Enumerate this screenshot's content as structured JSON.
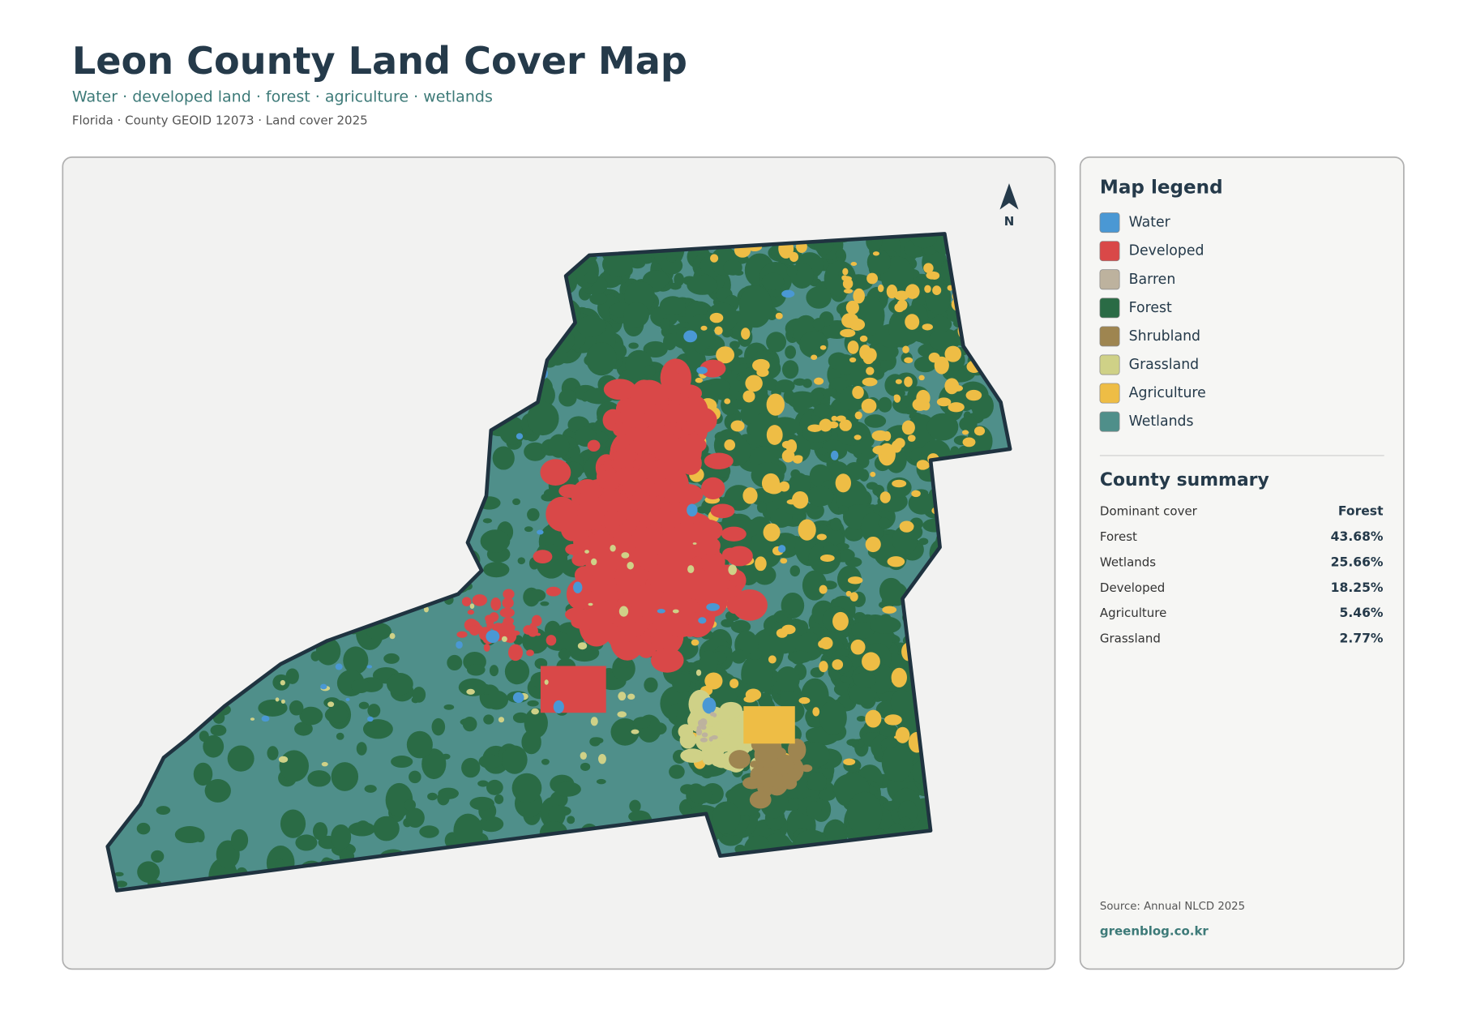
{
  "header": {
    "title": "Leon County Land Cover Map",
    "subtitle": "Water · developed land · forest · agriculture · wetlands",
    "meta": "Florida · County GEOID 12073 · Land cover 2025"
  },
  "map": {
    "north_label": "N"
  },
  "legend": {
    "title": "Map legend",
    "items": [
      {
        "label": "Water",
        "color": "#4a98d4"
      },
      {
        "label": "Developed",
        "color": "#d94848"
      },
      {
        "label": "Barren",
        "color": "#bdb29e"
      },
      {
        "label": "Forest",
        "color": "#2a6b45"
      },
      {
        "label": "Shrubland",
        "color": "#9e8550"
      },
      {
        "label": "Grassland",
        "color": "#cfd187"
      },
      {
        "label": "Agriculture",
        "color": "#eebd45"
      },
      {
        "label": "Wetlands",
        "color": "#4f8f8a"
      }
    ]
  },
  "summary": {
    "title": "County summary",
    "rows": [
      {
        "label": "Dominant cover",
        "value": "Forest"
      },
      {
        "label": "Forest",
        "value": "43.68%"
      },
      {
        "label": "Wetlands",
        "value": "25.66%"
      },
      {
        "label": "Developed",
        "value": "18.25%"
      },
      {
        "label": "Agriculture",
        "value": "5.46%"
      },
      {
        "label": "Grassland",
        "value": "2.77%"
      }
    ]
  },
  "footer": {
    "source": "Source: Annual NLCD 2025",
    "website": "greenblog.co.kr"
  }
}
